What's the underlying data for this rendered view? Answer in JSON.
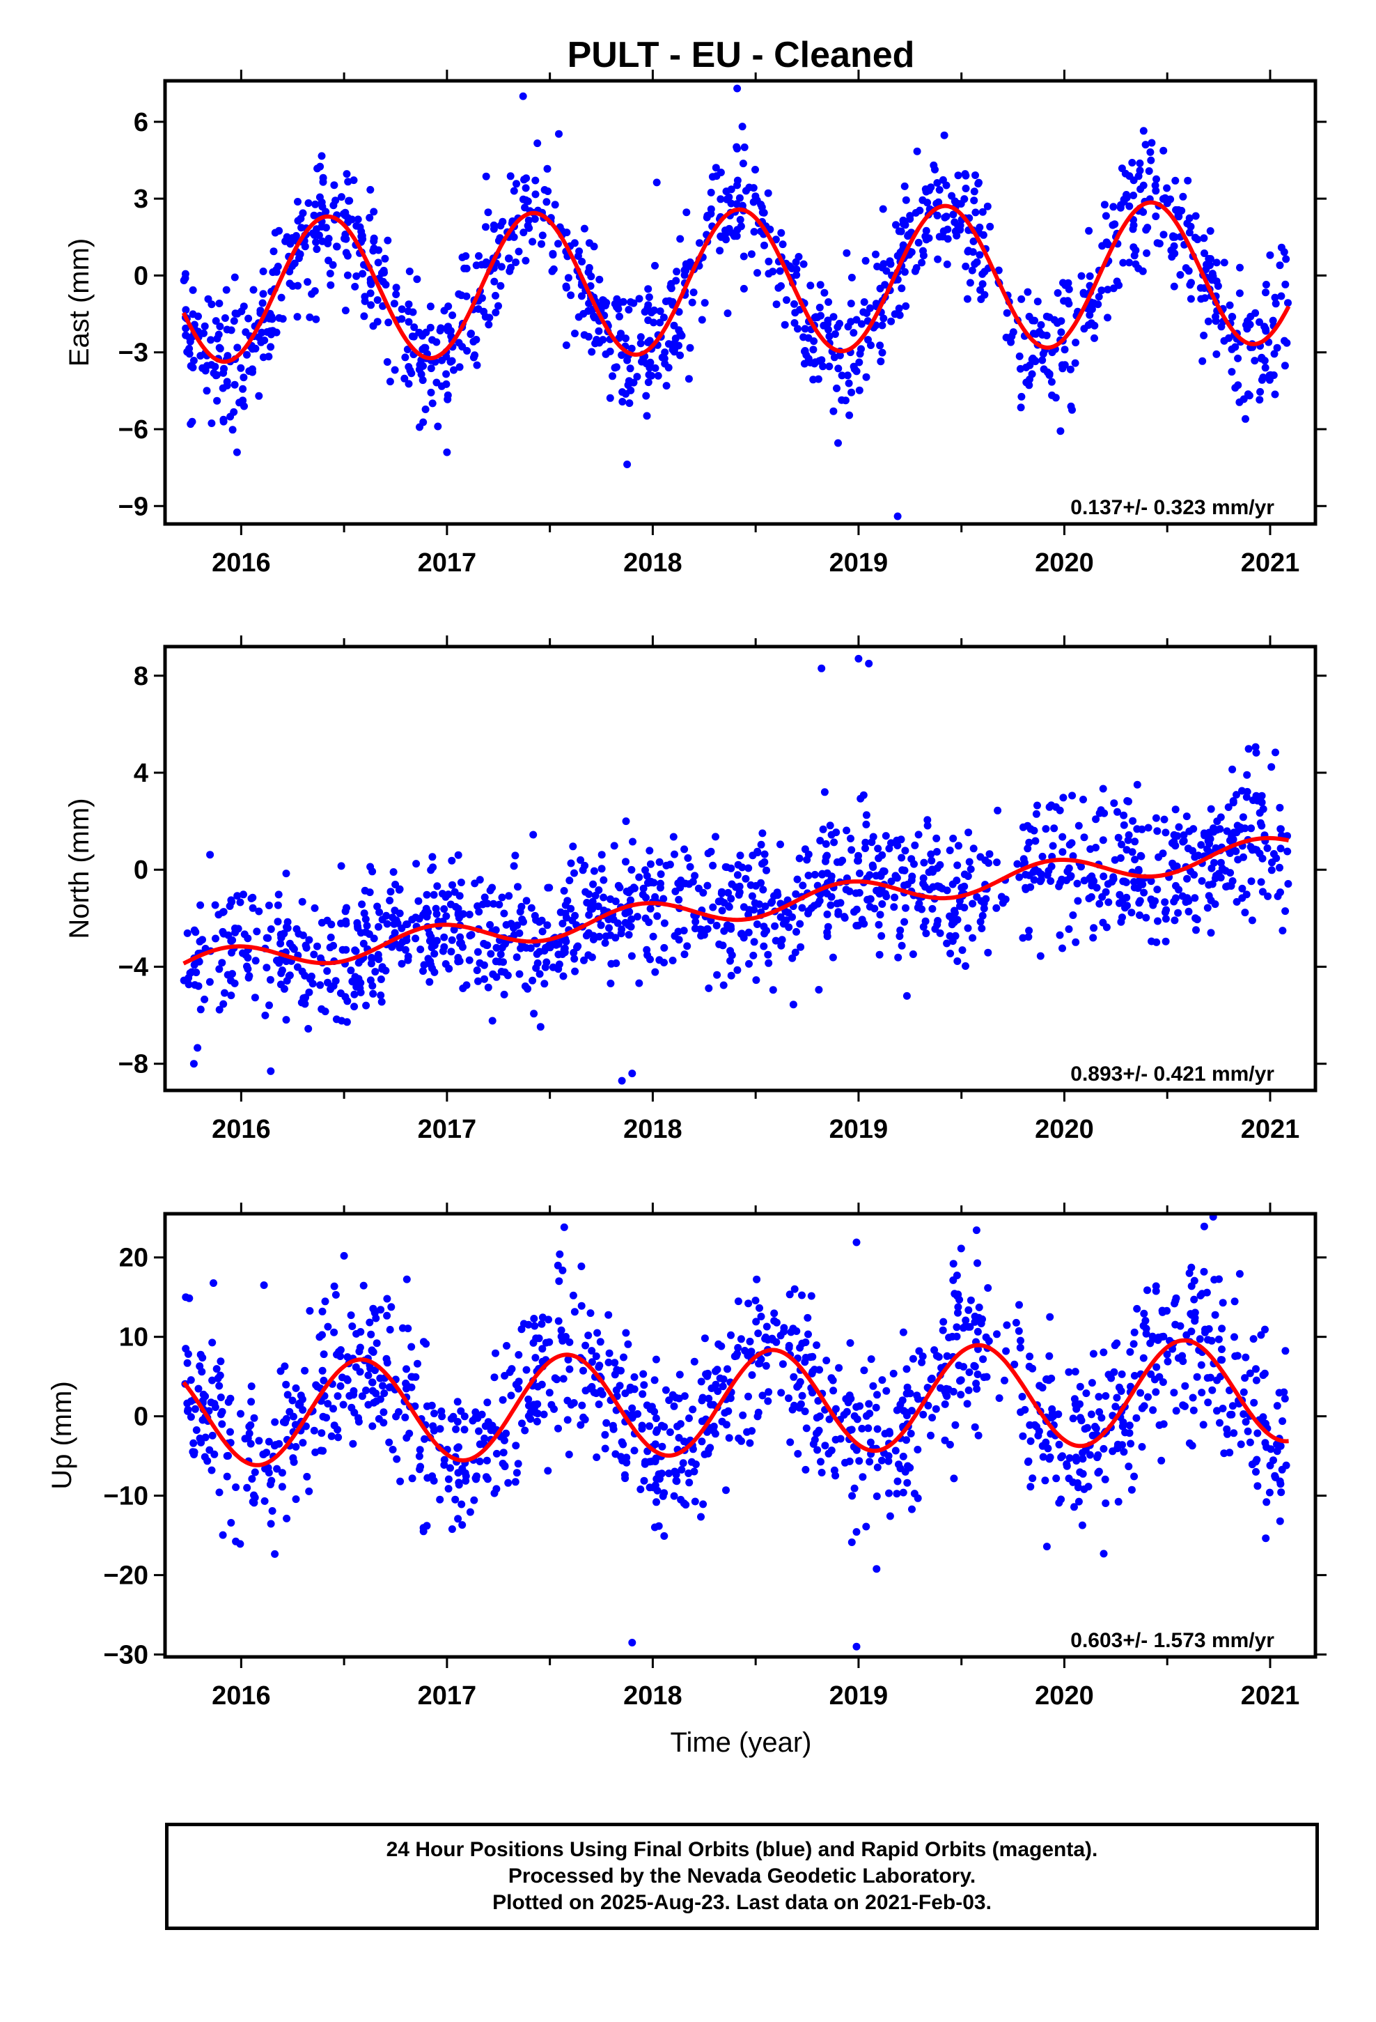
{
  "title": "PULT  - EU - Cleaned",
  "xlabel": "Time (year)",
  "footer": {
    "line1": "24 Hour Positions Using Final Orbits (blue) and Rapid Orbits (magenta).",
    "line2": "Processed by the Nevada Geodetic Laboratory.",
    "line3": "Plotted on 2025-Aug-23. Last data on 2021-Feb-03."
  },
  "colors": {
    "points": "#0000ff",
    "model": "#ff0000",
    "axis": "#000000"
  },
  "chart_data": [
    {
      "type": "scatter",
      "panel": "east",
      "ylabel": "East (mm)",
      "rate_label": "0.137+/- 0.323 mm/yr",
      "xlim": [
        2015.63,
        2021.22
      ],
      "ylim": [
        -9.7,
        7.6
      ],
      "xticks": [
        2016,
        2017,
        2018,
        2019,
        2020,
        2021
      ],
      "yticks": [
        -9,
        -6,
        -3,
        0,
        3,
        6
      ],
      "ytick_labels": [
        "−9",
        "−6",
        "−3",
        "0",
        "3",
        "6"
      ],
      "model": {
        "offset": -0.28,
        "rate": 0.137,
        "amplitude": 2.8,
        "peak": 0.42
      },
      "scatter": {
        "t_start": 2015.72,
        "t_end": 2021.09,
        "sigma": 1.3
      },
      "outliers": [
        [
          2019.19,
          -9.4
        ],
        [
          2017.37,
          7.0
        ],
        [
          2018.41,
          7.3
        ],
        [
          2015.98,
          -6.9
        ],
        [
          2017.0,
          -6.9
        ],
        [
          2020.88,
          -5.6
        ]
      ]
    },
    {
      "type": "scatter",
      "panel": "north",
      "ylabel": "North (mm)",
      "rate_label": "0.893+/- 0.421 mm/yr",
      "xlim": [
        2015.63,
        2021.22
      ],
      "ylim": [
        -9.1,
        9.2
      ],
      "xticks": [
        2016,
        2017,
        2018,
        2019,
        2020,
        2021
      ],
      "yticks": [
        -8,
        -4,
        0,
        4,
        8
      ],
      "ytick_labels": [
        "−8",
        "−4",
        "0",
        "4",
        "8"
      ],
      "model": {
        "offset": -1.9,
        "rate": 0.893,
        "amplitude": 0.55,
        "peak": 0.95
      },
      "scatter": {
        "t_start": 2015.72,
        "t_end": 2021.09,
        "sigma": 1.4
      },
      "outliers": [
        [
          2015.77,
          -8.0
        ],
        [
          2017.85,
          -8.7
        ],
        [
          2017.9,
          -8.4
        ],
        [
          2018.82,
          8.3
        ],
        [
          2019.0,
          8.7
        ],
        [
          2019.05,
          8.5
        ]
      ]
    },
    {
      "type": "scatter",
      "panel": "up",
      "ylabel": "Up (mm)",
      "rate_label": "0.603+/- 1.573 mm/yr",
      "xlim": [
        2015.63,
        2021.22
      ],
      "ylim": [
        -30.3,
        25.5
      ],
      "xticks": [
        2016,
        2017,
        2018,
        2019,
        2020,
        2021
      ],
      "yticks": [
        -30,
        -20,
        -10,
        0,
        10,
        20
      ],
      "ytick_labels": [
        "−30",
        "−20",
        "−10",
        "0",
        "10",
        "20"
      ],
      "model": {
        "offset": 1.5,
        "rate": 0.603,
        "amplitude": 6.5,
        "peak": 0.58
      },
      "scatter": {
        "t_start": 2015.72,
        "t_end": 2021.09,
        "sigma": 5.5
      },
      "outliers": [
        [
          2017.57,
          23.8
        ],
        [
          2020.68,
          23.9
        ],
        [
          2018.99,
          -29.0
        ],
        [
          2017.9,
          -28.5
        ],
        [
          2018.99,
          21.9
        ],
        [
          2016.5,
          20.2
        ]
      ]
    }
  ]
}
